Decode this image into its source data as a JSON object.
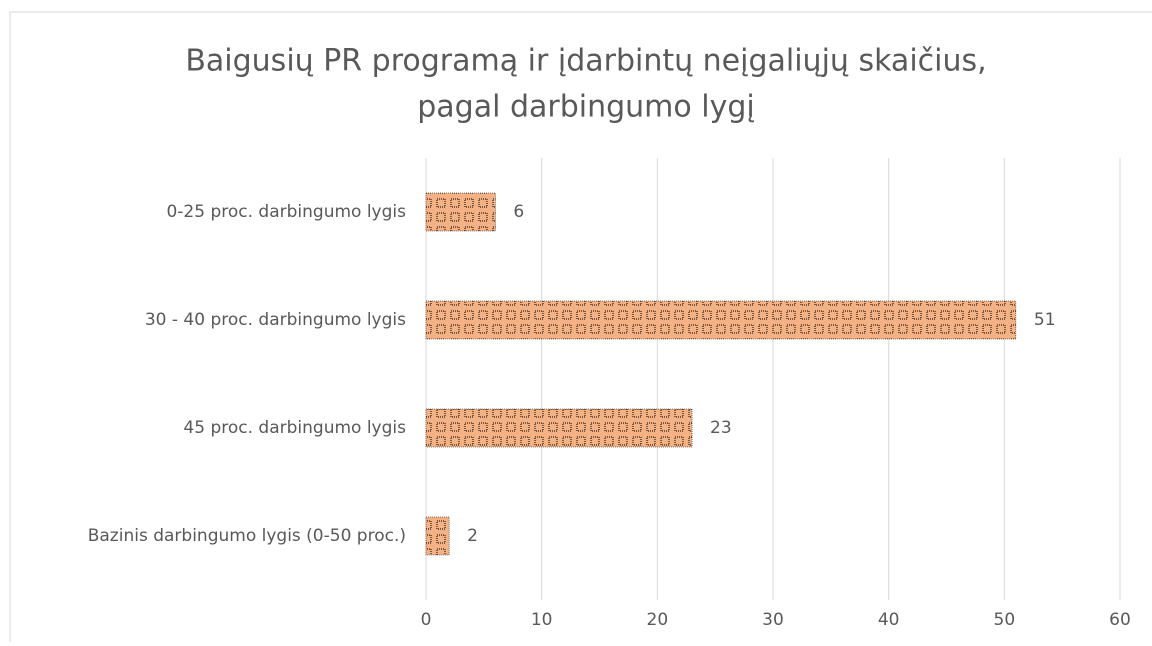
{
  "chart_data": {
    "type": "bar",
    "orientation": "horizontal",
    "title": [
      "Baigusių PR programą ir įdarbintų neįgaliųjų skaičius,",
      "pagal darbingumo lygį"
    ],
    "categories": [
      "0-25 proc. darbingumo lygis",
      "30 - 40 proc. darbingumo lygis",
      "45 proc. darbingumo lygis",
      "Bazinis darbingumo lygis (0-50 proc.)"
    ],
    "values": [
      6,
      51,
      23,
      2
    ],
    "color": "#f4b183",
    "xlim": [
      0,
      60
    ],
    "xticks": [
      0,
      10,
      20,
      30,
      40,
      50,
      60
    ],
    "grid": true
  }
}
